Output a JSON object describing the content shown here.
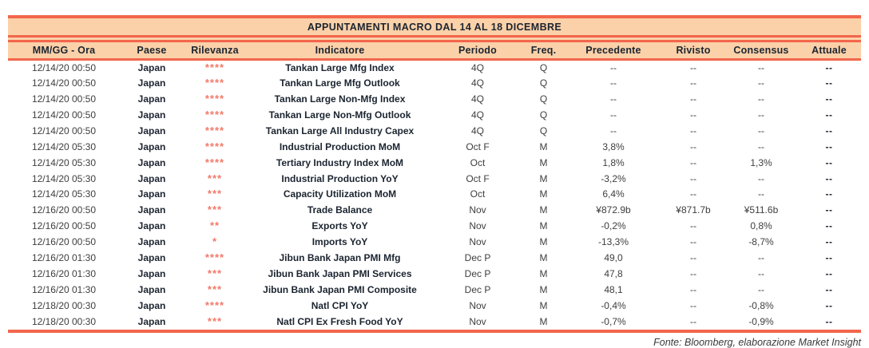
{
  "title": "APPUNTAMENTI MACRO DAL 14 AL 18 DICEMBRE",
  "footer": "Fonte: Bloomberg, elaborazione Market Insight",
  "colors": {
    "band_background": "#FBD1A9",
    "rule_line": "#F2664C",
    "header_text": "#1B2430",
    "body_text": "#3E3E3E",
    "relevance_stars": "#F2796A"
  },
  "table": {
    "columns": [
      "MM/GG - Ora",
      "Paese",
      "Rilevanza",
      "Indicatore",
      "Periodo",
      "Freq.",
      "Precedente",
      "Rivisto",
      "Consensus",
      "Attuale"
    ],
    "rows": [
      {
        "datetime": "12/14/20 00:50",
        "country": "Japan",
        "relevance": "****",
        "indicator": "Tankan Large Mfg Index",
        "period": "4Q",
        "freq": "Q",
        "previous": "--",
        "revised": "--",
        "consensus": "--",
        "actual": "--"
      },
      {
        "datetime": "12/14/20 00:50",
        "country": "Japan",
        "relevance": "****",
        "indicator": "Tankan Large Mfg Outlook",
        "period": "4Q",
        "freq": "Q",
        "previous": "--",
        "revised": "--",
        "consensus": "--",
        "actual": "--"
      },
      {
        "datetime": "12/14/20 00:50",
        "country": "Japan",
        "relevance": "****",
        "indicator": "Tankan Large Non-Mfg Index",
        "period": "4Q",
        "freq": "Q",
        "previous": "--",
        "revised": "--",
        "consensus": "--",
        "actual": "--"
      },
      {
        "datetime": "12/14/20 00:50",
        "country": "Japan",
        "relevance": "****",
        "indicator": "Tankan Large Non-Mfg Outlook",
        "period": "4Q",
        "freq": "Q",
        "previous": "--",
        "revised": "--",
        "consensus": "--",
        "actual": "--"
      },
      {
        "datetime": "12/14/20 00:50",
        "country": "Japan",
        "relevance": "****",
        "indicator": "Tankan Large All Industry Capex",
        "period": "4Q",
        "freq": "Q",
        "previous": "--",
        "revised": "--",
        "consensus": "--",
        "actual": "--"
      },
      {
        "datetime": "12/14/20 05:30",
        "country": "Japan",
        "relevance": "****",
        "indicator": "Industrial Production MoM",
        "period": "Oct F",
        "freq": "M",
        "previous": "3,8%",
        "revised": "--",
        "consensus": "--",
        "actual": "--"
      },
      {
        "datetime": "12/14/20 05:30",
        "country": "Japan",
        "relevance": "****",
        "indicator": "Tertiary Industry Index MoM",
        "period": "Oct",
        "freq": "M",
        "previous": "1,8%",
        "revised": "--",
        "consensus": "1,3%",
        "actual": "--"
      },
      {
        "datetime": "12/14/20 05:30",
        "country": "Japan",
        "relevance": "***",
        "indicator": "Industrial Production YoY",
        "period": "Oct F",
        "freq": "M",
        "previous": "-3,2%",
        "revised": "--",
        "consensus": "--",
        "actual": "--"
      },
      {
        "datetime": "12/14/20 05:30",
        "country": "Japan",
        "relevance": "***",
        "indicator": "Capacity Utilization MoM",
        "period": "Oct",
        "freq": "M",
        "previous": "6,4%",
        "revised": "--",
        "consensus": "--",
        "actual": "--"
      },
      {
        "datetime": "12/16/20 00:50",
        "country": "Japan",
        "relevance": "***",
        "indicator": "Trade Balance",
        "period": "Nov",
        "freq": "M",
        "previous": "¥872.9b",
        "revised": "¥871.7b",
        "consensus": "¥511.6b",
        "actual": "--"
      },
      {
        "datetime": "12/16/20 00:50",
        "country": "Japan",
        "relevance": "**",
        "indicator": "Exports YoY",
        "period": "Nov",
        "freq": "M",
        "previous": "-0,2%",
        "revised": "--",
        "consensus": "0,8%",
        "actual": "--"
      },
      {
        "datetime": "12/16/20 00:50",
        "country": "Japan",
        "relevance": "*",
        "indicator": "Imports YoY",
        "period": "Nov",
        "freq": "M",
        "previous": "-13,3%",
        "revised": "--",
        "consensus": "-8,7%",
        "actual": "--"
      },
      {
        "datetime": "12/16/20 01:30",
        "country": "Japan",
        "relevance": "****",
        "indicator": "Jibun Bank Japan PMI Mfg",
        "period": "Dec P",
        "freq": "M",
        "previous": "49,0",
        "revised": "--",
        "consensus": "--",
        "actual": "--"
      },
      {
        "datetime": "12/16/20 01:30",
        "country": "Japan",
        "relevance": "***",
        "indicator": "Jibun Bank Japan PMI Services",
        "period": "Dec P",
        "freq": "M",
        "previous": "47,8",
        "revised": "--",
        "consensus": "--",
        "actual": "--"
      },
      {
        "datetime": "12/16/20 01:30",
        "country": "Japan",
        "relevance": "***",
        "indicator": "Jibun Bank Japan PMI Composite",
        "period": "Dec P",
        "freq": "M",
        "previous": "48,1",
        "revised": "--",
        "consensus": "--",
        "actual": "--"
      },
      {
        "datetime": "12/18/20 00:30",
        "country": "Japan",
        "relevance": "****",
        "indicator": "Natl CPI YoY",
        "period": "Nov",
        "freq": "M",
        "previous": "-0,4%",
        "revised": "--",
        "consensus": "-0,8%",
        "actual": "--"
      },
      {
        "datetime": "12/18/20 00:30",
        "country": "Japan",
        "relevance": "***",
        "indicator": "Natl CPI Ex Fresh Food YoY",
        "period": "Nov",
        "freq": "M",
        "previous": "-0,7%",
        "revised": "--",
        "consensus": "-0,9%",
        "actual": "--"
      }
    ]
  }
}
